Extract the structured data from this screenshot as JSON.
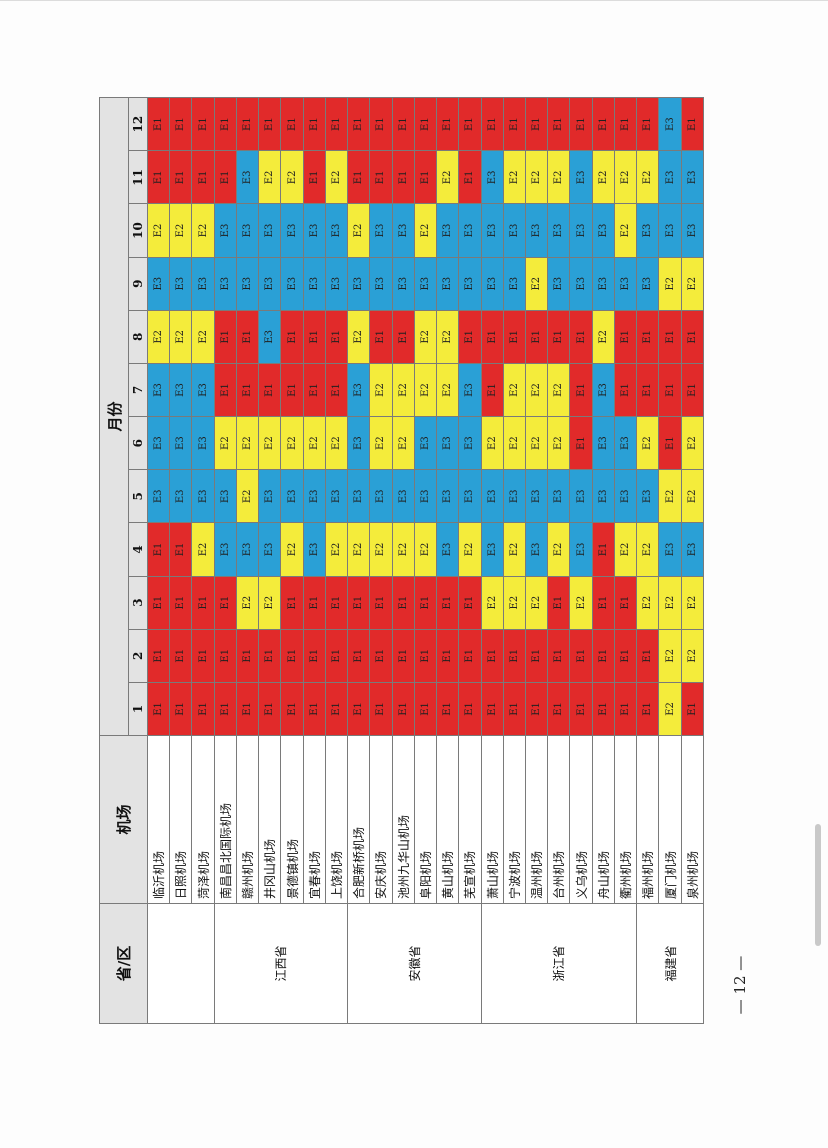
{
  "header": {
    "province": "省/区",
    "airport": "机场",
    "month_group": "月份",
    "months": [
      "1",
      "2",
      "3",
      "4",
      "5",
      "6",
      "7",
      "8",
      "9",
      "10",
      "11",
      "12"
    ]
  },
  "colors": {
    "E1": "#e12a2a",
    "E2": "#f4ec3b",
    "E3": "#2aa0d6"
  },
  "groups": [
    {
      "province": "",
      "rows": [
        {
          "airport": "临沂机场",
          "codes": [
            "E1",
            "E1",
            "E1",
            "E1",
            "E3",
            "E3",
            "E3",
            "E2",
            "E3",
            "E2",
            "E1",
            "E1"
          ]
        },
        {
          "airport": "日照机场",
          "codes": [
            "E1",
            "E1",
            "E1",
            "E1",
            "E3",
            "E3",
            "E3",
            "E2",
            "E3",
            "E2",
            "E1",
            "E1"
          ]
        },
        {
          "airport": "菏泽机场",
          "codes": [
            "E1",
            "E1",
            "E1",
            "E2",
            "E3",
            "E3",
            "E3",
            "E2",
            "E3",
            "E2",
            "E1",
            "E1"
          ]
        }
      ]
    },
    {
      "province": "江西省",
      "rows": [
        {
          "airport": "南昌昌北国际机场",
          "codes": [
            "E1",
            "E1",
            "E1",
            "E3",
            "E3",
            "E2",
            "E1",
            "E1",
            "E3",
            "E3",
            "E1",
            "E1"
          ]
        },
        {
          "airport": "赣州机场",
          "codes": [
            "E1",
            "E1",
            "E2",
            "E3",
            "E2",
            "E2",
            "E1",
            "E1",
            "E3",
            "E3",
            "E3",
            "E1"
          ]
        },
        {
          "airport": "井冈山机场",
          "codes": [
            "E1",
            "E1",
            "E2",
            "E3",
            "E3",
            "E2",
            "E1",
            "E3",
            "E3",
            "E3",
            "E2",
            "E1"
          ]
        },
        {
          "airport": "景德镇机场",
          "codes": [
            "E1",
            "E1",
            "E1",
            "E2",
            "E3",
            "E2",
            "E1",
            "E1",
            "E3",
            "E3",
            "E2",
            "E1"
          ]
        },
        {
          "airport": "宜春机场",
          "codes": [
            "E1",
            "E1",
            "E1",
            "E3",
            "E3",
            "E2",
            "E1",
            "E1",
            "E3",
            "E3",
            "E1",
            "E1"
          ]
        },
        {
          "airport": "上饶机场",
          "codes": [
            "E1",
            "E1",
            "E1",
            "E2",
            "E3",
            "E2",
            "E1",
            "E1",
            "E3",
            "E3",
            "E2",
            "E1"
          ]
        }
      ]
    },
    {
      "province": "安徽省",
      "rows": [
        {
          "airport": "合肥新桥机场",
          "codes": [
            "E1",
            "E1",
            "E1",
            "E2",
            "E3",
            "E3",
            "E3",
            "E2",
            "E3",
            "E2",
            "E1",
            "E1"
          ]
        },
        {
          "airport": "安庆机场",
          "codes": [
            "E1",
            "E1",
            "E1",
            "E2",
            "E3",
            "E2",
            "E2",
            "E1",
            "E3",
            "E3",
            "E1",
            "E1"
          ]
        },
        {
          "airport": "池州九华山机场",
          "codes": [
            "E1",
            "E1",
            "E1",
            "E2",
            "E3",
            "E2",
            "E2",
            "E1",
            "E3",
            "E3",
            "E1",
            "E1"
          ]
        },
        {
          "airport": "阜阳机场",
          "codes": [
            "E1",
            "E1",
            "E1",
            "E2",
            "E3",
            "E3",
            "E2",
            "E2",
            "E3",
            "E2",
            "E1",
            "E1"
          ]
        },
        {
          "airport": "黄山机场",
          "codes": [
            "E1",
            "E1",
            "E1",
            "E3",
            "E3",
            "E3",
            "E2",
            "E2",
            "E3",
            "E3",
            "E2",
            "E1"
          ]
        },
        {
          "airport": "芜宣机场",
          "codes": [
            "E1",
            "E1",
            "E1",
            "E2",
            "E3",
            "E3",
            "E3",
            "E1",
            "E3",
            "E3",
            "E1",
            "E1"
          ]
        }
      ]
    },
    {
      "province": "浙江省",
      "rows": [
        {
          "airport": "萧山机场",
          "codes": [
            "E1",
            "E1",
            "E2",
            "E3",
            "E3",
            "E2",
            "E1",
            "E1",
            "E3",
            "E3",
            "E3",
            "E1"
          ]
        },
        {
          "airport": "宁波机场",
          "codes": [
            "E1",
            "E1",
            "E2",
            "E2",
            "E3",
            "E2",
            "E2",
            "E1",
            "E3",
            "E3",
            "E2",
            "E1"
          ]
        },
        {
          "airport": "温州机场",
          "codes": [
            "E1",
            "E1",
            "E2",
            "E3",
            "E3",
            "E2",
            "E2",
            "E1",
            "E2",
            "E3",
            "E2",
            "E1"
          ]
        },
        {
          "airport": "台州机场",
          "codes": [
            "E1",
            "E1",
            "E1",
            "E2",
            "E3",
            "E2",
            "E2",
            "E1",
            "E3",
            "E3",
            "E2",
            "E1"
          ]
        },
        {
          "airport": "义乌机场",
          "codes": [
            "E1",
            "E1",
            "E2",
            "E3",
            "E3",
            "E1",
            "E1",
            "E1",
            "E3",
            "E3",
            "E3",
            "E1"
          ]
        },
        {
          "airport": "舟山机场",
          "codes": [
            "E1",
            "E1",
            "E1",
            "E1",
            "E3",
            "E3",
            "E3",
            "E2",
            "E3",
            "E3",
            "E2",
            "E1"
          ]
        },
        {
          "airport": "衢州机场",
          "codes": [
            "E1",
            "E1",
            "E1",
            "E2",
            "E3",
            "E3",
            "E1",
            "E1",
            "E3",
            "E2",
            "E2",
            "E1"
          ]
        }
      ]
    },
    {
      "province": "福建省",
      "rows": [
        {
          "airport": "福州机场",
          "codes": [
            "E1",
            "E1",
            "E2",
            "E2",
            "E3",
            "E2",
            "E1",
            "E1",
            "E3",
            "E3",
            "E2",
            "E1"
          ]
        },
        {
          "airport": "厦门机场",
          "codes": [
            "E2",
            "E2",
            "E2",
            "E3",
            "E2",
            "E1",
            "E1",
            "E1",
            "E2",
            "E3",
            "E3",
            "E3"
          ]
        },
        {
          "airport": "泉州机场",
          "codes": [
            "E1",
            "E2",
            "E2",
            "E3",
            "E2",
            "E2",
            "E1",
            "E1",
            "E2",
            "E3",
            "E3",
            "E1"
          ]
        }
      ]
    }
  ],
  "footer": {
    "page_number": "— 12 —"
  }
}
